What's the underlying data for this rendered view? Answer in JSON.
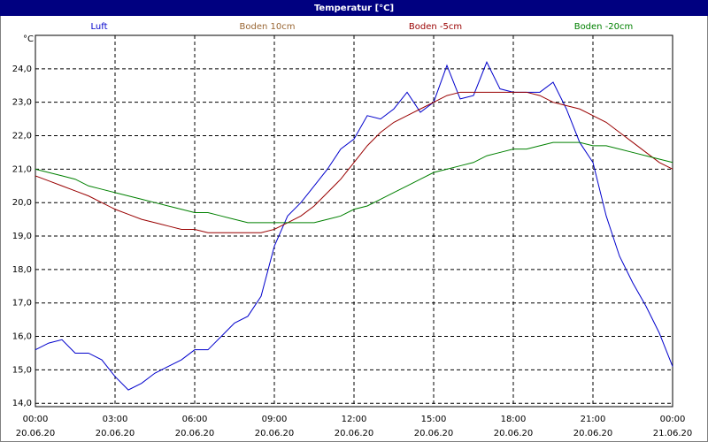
{
  "chart_data": {
    "type": "line",
    "title": "Temperatur [°C]",
    "y_unit": "°C",
    "x": [
      0,
      0.5,
      1,
      1.5,
      2,
      2.5,
      3,
      3.5,
      4,
      4.5,
      5,
      5.5,
      6,
      6.5,
      7,
      7.5,
      8,
      8.5,
      9,
      9.5,
      10,
      10.5,
      11,
      11.5,
      12,
      12.5,
      13,
      13.5,
      14,
      14.5,
      15,
      15.5,
      16,
      16.5,
      17,
      17.5,
      18,
      18.5,
      19,
      19.5,
      20,
      20.5,
      21,
      21.5,
      22,
      22.5,
      23,
      23.5,
      24
    ],
    "series": [
      {
        "name": "Luft",
        "color": "#0000cc",
        "values": [
          15.6,
          15.8,
          15.9,
          15.5,
          15.5,
          15.3,
          14.8,
          14.4,
          14.6,
          14.9,
          15.1,
          15.3,
          15.6,
          15.6,
          16.0,
          16.4,
          16.6,
          17.2,
          18.7,
          19.6,
          20.0,
          20.5,
          21.0,
          21.6,
          21.9,
          22.6,
          22.5,
          22.8,
          23.3,
          22.7,
          23.0,
          24.1,
          23.1,
          23.2,
          24.2,
          23.4,
          23.3,
          23.3,
          23.3,
          23.6,
          22.8,
          21.8,
          21.2,
          19.6,
          18.4,
          17.6,
          16.9,
          16.1,
          15.1
        ]
      },
      {
        "name": "Boden 10cm",
        "color": "#996633",
        "values": [
          null,
          null,
          null,
          null,
          null,
          null,
          null,
          null,
          null,
          null,
          null,
          null,
          null,
          null,
          null,
          null,
          null,
          null,
          null,
          null,
          null,
          null,
          null,
          null,
          null,
          null,
          null,
          null,
          null,
          null,
          null,
          null,
          null,
          null,
          null,
          null,
          null,
          null,
          null,
          null,
          null,
          null,
          null,
          null,
          null,
          null,
          null,
          null,
          null
        ]
      },
      {
        "name": "Boden -5cm",
        "color": "#990000",
        "values": [
          20.8,
          20.65,
          20.5,
          20.35,
          20.2,
          20.0,
          19.8,
          19.65,
          19.5,
          19.4,
          19.3,
          19.2,
          19.2,
          19.1,
          19.1,
          19.1,
          19.1,
          19.1,
          19.2,
          19.4,
          19.6,
          19.9,
          20.3,
          20.7,
          21.2,
          21.7,
          22.1,
          22.4,
          22.6,
          22.8,
          23.0,
          23.2,
          23.3,
          23.3,
          23.3,
          23.3,
          23.3,
          23.3,
          23.2,
          23.0,
          22.9,
          22.8,
          22.6,
          22.4,
          22.1,
          21.8,
          21.5,
          21.2,
          21.0
        ]
      },
      {
        "name": "Boden -20cm",
        "color": "#008000",
        "values": [
          21.0,
          20.9,
          20.8,
          20.7,
          20.5,
          20.4,
          20.3,
          20.2,
          20.1,
          20.0,
          19.9,
          19.8,
          19.7,
          19.7,
          19.6,
          19.5,
          19.4,
          19.4,
          19.4,
          19.4,
          19.4,
          19.4,
          19.5,
          19.6,
          19.8,
          19.9,
          20.1,
          20.3,
          20.5,
          20.7,
          20.9,
          21.0,
          21.1,
          21.2,
          21.4,
          21.5,
          21.6,
          21.6,
          21.7,
          21.8,
          21.8,
          21.8,
          21.7,
          21.7,
          21.6,
          21.5,
          21.4,
          21.3,
          21.2
        ]
      }
    ],
    "xlim": [
      0,
      24
    ],
    "xticks": [
      {
        "value": 0,
        "label": "00:00",
        "date": "20.06.20"
      },
      {
        "value": 3,
        "label": "03:00",
        "date": "20.06.20"
      },
      {
        "value": 6,
        "label": "06:00",
        "date": "20.06.20"
      },
      {
        "value": 9,
        "label": "09:00",
        "date": "20.06.20"
      },
      {
        "value": 12,
        "label": "12:00",
        "date": "20.06.20"
      },
      {
        "value": 15,
        "label": "15:00",
        "date": "20.06.20"
      },
      {
        "value": 18,
        "label": "18:00",
        "date": "20.06.20"
      },
      {
        "value": 21,
        "label": "21:00",
        "date": "20.06.20"
      },
      {
        "value": 24,
        "label": "00:00",
        "date": "21.06.20"
      }
    ],
    "ylim": [
      13.9,
      25.0
    ],
    "yticks": [
      {
        "value": 14,
        "label": "14,0"
      },
      {
        "value": 15,
        "label": "15,0"
      },
      {
        "value": 16,
        "label": "16,0"
      },
      {
        "value": 17,
        "label": "17,0"
      },
      {
        "value": 18,
        "label": "18,0"
      },
      {
        "value": 19,
        "label": "19,0"
      },
      {
        "value": 20,
        "label": "20,0"
      },
      {
        "value": 21,
        "label": "21,0"
      },
      {
        "value": 22,
        "label": "22,0"
      },
      {
        "value": 23,
        "label": "23,0"
      },
      {
        "value": 24,
        "label": "24,0"
      }
    ],
    "grid": true
  }
}
